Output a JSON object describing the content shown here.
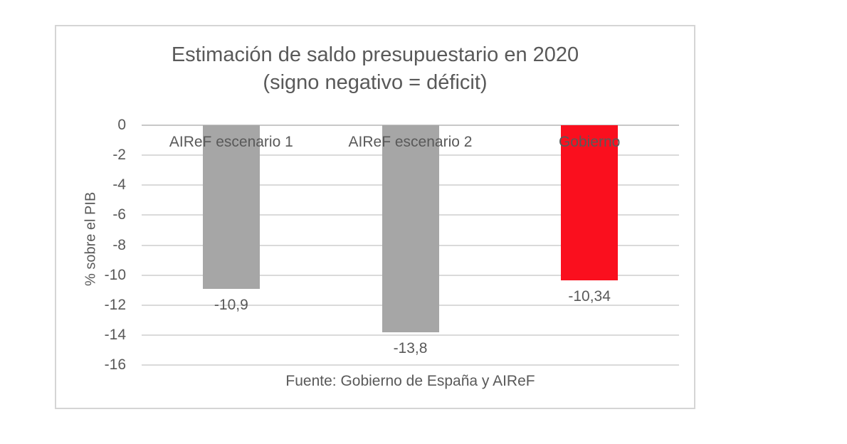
{
  "chart_data": {
    "type": "bar",
    "title": "Estimación de saldo presupuestario en 2020",
    "subtitle": "(signo negativo = déficit)",
    "categories": [
      "AIReF escenario 1",
      "AIReF escenario 2",
      "Gobierno"
    ],
    "values": [
      -10.9,
      -13.8,
      -10.34
    ],
    "value_labels": [
      "-10,9",
      "-13,8",
      "-10,34"
    ],
    "bar_colors": [
      "#a6a6a6",
      "#a6a6a6",
      "#fa0f1e"
    ],
    "xlabel": "",
    "ylabel": "% sobre el PIB",
    "ylim": [
      -16,
      0
    ],
    "yticks": [
      0,
      -2,
      -4,
      -6,
      -8,
      -10,
      -12,
      -14,
      -16
    ],
    "ytick_labels": [
      "0",
      "-2",
      "-4",
      "-6",
      "-8",
      "-10",
      "-12",
      "-14",
      "-16"
    ],
    "grid": true,
    "legend": false,
    "source": "Fuente: Gobierno de España y AIReF",
    "colors": {
      "bar_gray": "#a6a6a6",
      "bar_red": "#fa0f1e",
      "text": "#595959",
      "gridline": "#dadada",
      "frame_border": "#d5d5d5",
      "background": "#ffffff"
    }
  }
}
